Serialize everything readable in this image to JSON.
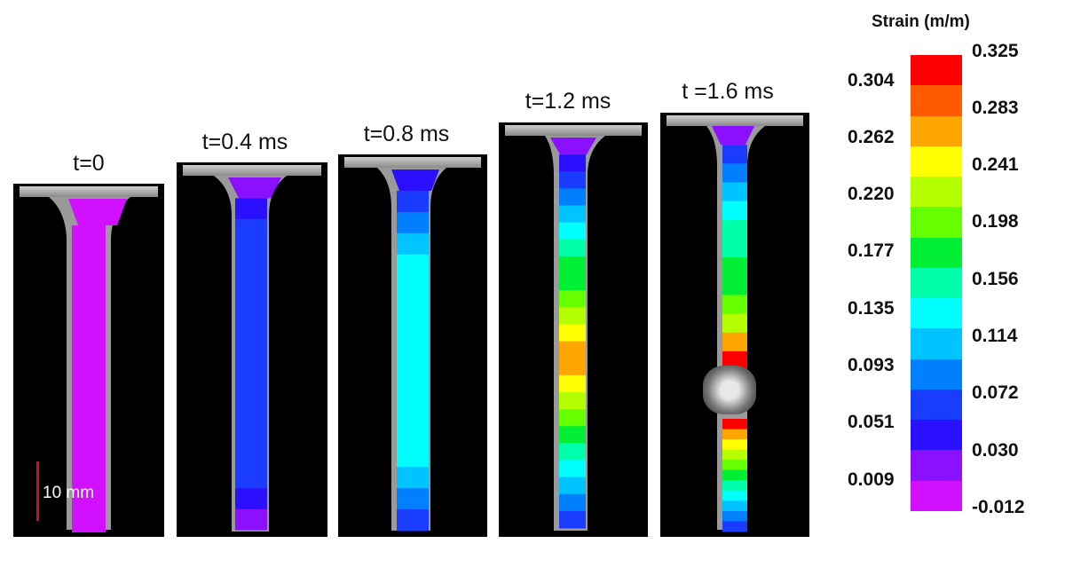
{
  "time_labels": [
    "t=0",
    "t=0.4 ms",
    "t=0.8 ms",
    "t=1.2 ms",
    "t =1.6 ms"
  ],
  "scale_bar_label": "10 mm",
  "colorbar": {
    "title": "Strain (m/m)",
    "colors": [
      "#ff0000",
      "#ff5a00",
      "#ffa500",
      "#ffff00",
      "#b4ff00",
      "#66ff00",
      "#00ee33",
      "#00ffaa",
      "#00ffff",
      "#00c4ff",
      "#0080ff",
      "#1a3cff",
      "#2a10ff",
      "#8a10ff",
      "#d010ff"
    ],
    "right_ticks": [
      "0.325",
      "0.283",
      "0.241",
      "0.198",
      "0.156",
      "0.114",
      "0.072",
      "0.030",
      "-0.012"
    ],
    "left_ticks": [
      "0.304",
      "0.262",
      "0.220",
      "0.177",
      "0.135",
      "0.093",
      "0.051",
      "0.009"
    ]
  },
  "frames": [
    {
      "bands": [
        "#d010ff"
      ]
    },
    {
      "bands": [
        "#8a10ff",
        "#2a10ff",
        "#1a3cff",
        "#1a3cff",
        "#1a3cff",
        "#1a3cff",
        "#1a3cff",
        "#1a3cff",
        "#1a3cff",
        "#1a3cff",
        "#1a3cff",
        "#1a3cff",
        "#1a3cff",
        "#1a3cff",
        "#1a3cff",
        "#2a10ff",
        "#8a10ff"
      ]
    },
    {
      "bands": [
        "#2a10ff",
        "#1a3cff",
        "#0080ff",
        "#00c4ff",
        "#00ffff",
        "#00ffff",
        "#00ffff",
        "#00ffff",
        "#00ffff",
        "#00ffff",
        "#00ffff",
        "#00ffff",
        "#00ffff",
        "#00ffff",
        "#00c4ff",
        "#0080ff",
        "#1a3cff"
      ]
    },
    {
      "bands": [
        "#8a10ff",
        "#2a10ff",
        "#1a3cff",
        "#0080ff",
        "#00c4ff",
        "#00ffff",
        "#00ffaa",
        "#00ee33",
        "#00ee33",
        "#66ff00",
        "#b4ff00",
        "#ffff00",
        "#ffa500",
        "#ffa500",
        "#ffff00",
        "#b4ff00",
        "#66ff00",
        "#00ee33",
        "#00ffaa",
        "#00ffff",
        "#00c4ff",
        "#0080ff",
        "#1a3cff"
      ]
    },
    {
      "bands_top": [
        "#8a10ff",
        "#1a3cff",
        "#0080ff",
        "#00c4ff",
        "#00ffff",
        "#00ffaa",
        "#00ffaa",
        "#00ee33",
        "#00ee33",
        "#66ff00",
        "#b4ff00",
        "#ffa500",
        "#ff0000"
      ],
      "bands_bottom": [
        "#ff0000",
        "#ffa500",
        "#ffff00",
        "#b4ff00",
        "#66ff00",
        "#00ee33",
        "#00ffaa",
        "#00ffff",
        "#00c4ff",
        "#0080ff",
        "#1a3cff"
      ]
    }
  ]
}
